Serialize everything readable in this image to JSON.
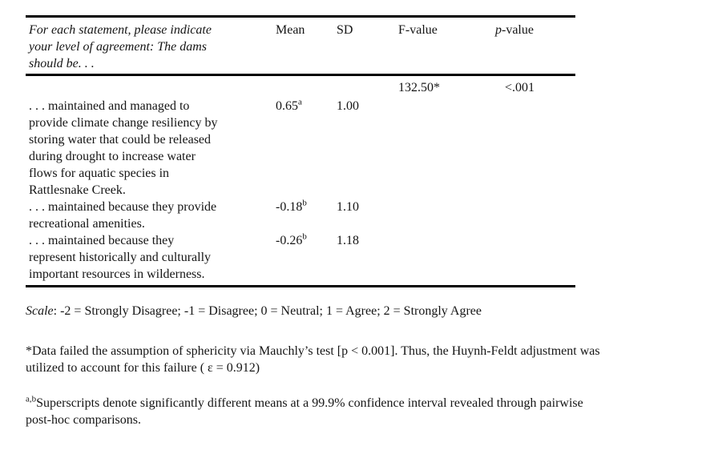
{
  "table": {
    "headers": {
      "statement": "For each statement, please indicate\nyour level of agreement: The dams\nshould be. . .",
      "mean": "Mean",
      "sd": "SD",
      "f": "F-value",
      "p_italic": "p",
      "p_rest": "-value"
    },
    "rows": [
      {
        "statement": "",
        "mean": "",
        "mean_sup": "",
        "sd": "",
        "f": "132.50*",
        "p": "<.001"
      },
      {
        "statement": ". . . maintained and managed to\nprovide climate change resiliency by\nstoring water that could be released\nduring drought to increase water\nflows for aquatic species in\nRattlesnake Creek.",
        "mean": "0.65",
        "mean_sup": "a",
        "sd": "1.00",
        "f": "",
        "p": ""
      },
      {
        "statement": ". . . maintained because they provide\nrecreational amenities.",
        "mean": "-0.18",
        "mean_sup": "b",
        "sd": "1.10",
        "f": "",
        "p": ""
      },
      {
        "statement": ". . . maintained because they\nrepresent historically and culturally\nimportant resources in wilderness.",
        "mean": "-0.26",
        "mean_sup": "b",
        "sd": "1.18",
        "f": "",
        "p": ""
      }
    ]
  },
  "notes": {
    "scale_label": "Scale",
    "scale_text": ": -2 = Strongly Disagree; -1 = Disagree; 0 = Neutral; 1 = Agree; 2 = Strongly Agree",
    "sphericity": "*Data failed the assumption of sphericity via Mauchly’s test [p < 0.001]. Thus, the Huynh-Feldt adjustment was\nutilized to account for this failure ( ε  = 0.912)",
    "superscript_sup": "a,b",
    "superscript_text": "Superscripts denote significantly different means at a 99.9% confidence interval revealed through pairwise\npost-hoc comparisons."
  },
  "colors": {
    "background": "#ffffff",
    "text": "#151515",
    "rule": "#000000"
  }
}
